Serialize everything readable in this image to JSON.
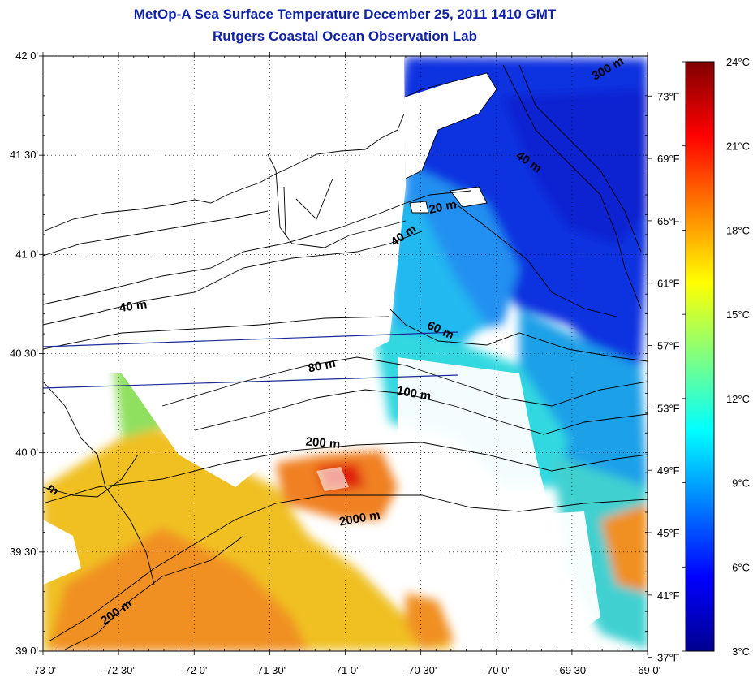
{
  "title": "MetOp-A Sea Surface Temperature December 25, 2011 1410 GMT",
  "subtitle": "Rutgers Coastal Ocean Observation Lab",
  "map": {
    "lat_range": [
      39.0,
      42.0
    ],
    "lon_range": [
      -73.0,
      -69.0
    ],
    "lat_ticks": [
      {
        "value": 42.0,
        "label": "42 0'"
      },
      {
        "value": 41.5,
        "label": "41 30'"
      },
      {
        "value": 41.0,
        "label": "41 0'"
      },
      {
        "value": 40.5,
        "label": "40 30'"
      },
      {
        "value": 40.0,
        "label": "40 0'"
      },
      {
        "value": 39.5,
        "label": "39 30'"
      },
      {
        "value": 39.0,
        "label": "39 0'"
      }
    ],
    "lon_ticks": [
      {
        "value": -73.0,
        "label": "-73 0'"
      },
      {
        "value": -72.5,
        "label": "-72 30'"
      },
      {
        "value": -72.0,
        "label": "-72 0'"
      },
      {
        "value": -71.5,
        "label": "-71 30'"
      },
      {
        "value": -71.0,
        "label": "-71 0'"
      },
      {
        "value": -70.5,
        "label": "-70 30'"
      },
      {
        "value": -70.0,
        "label": "-70 0'"
      },
      {
        "value": -69.5,
        "label": "-69 30'"
      },
      {
        "value": -69.0,
        "label": "-69 0'"
      }
    ],
    "fahrenheit_ticks": [
      {
        "value": 73,
        "label": "73°F"
      },
      {
        "value": 69,
        "label": "69°F"
      },
      {
        "value": 65,
        "label": "65°F"
      },
      {
        "value": 61,
        "label": "61°F"
      },
      {
        "value": 57,
        "label": "57°F"
      },
      {
        "value": 53,
        "label": "53°F"
      },
      {
        "value": 49,
        "label": "49°F"
      },
      {
        "value": 45,
        "label": "45°F"
      },
      {
        "value": 41,
        "label": "41°F"
      },
      {
        "value": 37,
        "label": "37°F"
      }
    ],
    "grid": "dotted",
    "contour_labels": [
      {
        "text": "20 m",
        "lon": -70.35,
        "lat": 41.22,
        "rot": -12
      },
      {
        "text": "40 m",
        "lon": -70.6,
        "lat": 41.08,
        "rot": -35
      },
      {
        "text": "40 m",
        "lon": -72.4,
        "lat": 40.72,
        "rot": -8
      },
      {
        "text": "40 m",
        "lon": -69.8,
        "lat": 41.45,
        "rot": 35
      },
      {
        "text": "60 m",
        "lon": -70.38,
        "lat": 40.6,
        "rot": 25
      },
      {
        "text": "80 m",
        "lon": -71.15,
        "lat": 40.42,
        "rot": -12
      },
      {
        "text": "100 m",
        "lon": -70.55,
        "lat": 40.28,
        "rot": 10
      },
      {
        "text": "200 m",
        "lon": -71.15,
        "lat": 40.03,
        "rot": 5
      },
      {
        "text": "200 m",
        "lon": -72.5,
        "lat": 39.18,
        "rot": -35
      },
      {
        "text": "2000 m",
        "lon": -70.9,
        "lat": 39.65,
        "rot": -10
      },
      {
        "text": "300 m",
        "lon": -69.25,
        "lat": 41.92,
        "rot": -30
      },
      {
        "text": "m",
        "lon": -72.95,
        "lat": 39.8,
        "rot": 40
      }
    ]
  },
  "colorbar": {
    "celsius_ticks": [
      {
        "value": 24,
        "label": "24°C"
      },
      {
        "value": 21,
        "label": "21°C"
      },
      {
        "value": 18,
        "label": "18°C"
      },
      {
        "value": 15,
        "label": "15°C"
      },
      {
        "value": 12,
        "label": "12°C"
      },
      {
        "value": 9,
        "label": "9°C"
      },
      {
        "value": 6,
        "label": "6°C"
      },
      {
        "value": 3,
        "label": "3°C"
      }
    ],
    "range_c": [
      3,
      24
    ],
    "colors": [
      "#00008f",
      "#0000ff",
      "#0080ff",
      "#00ffff",
      "#80ff80",
      "#ffff00",
      "#ff8000",
      "#ff0000",
      "#800000"
    ]
  },
  "colors": {
    "title": "#1122aa",
    "land": "#ffffff",
    "coast": "#000000",
    "transect": "#1a2a9a"
  }
}
